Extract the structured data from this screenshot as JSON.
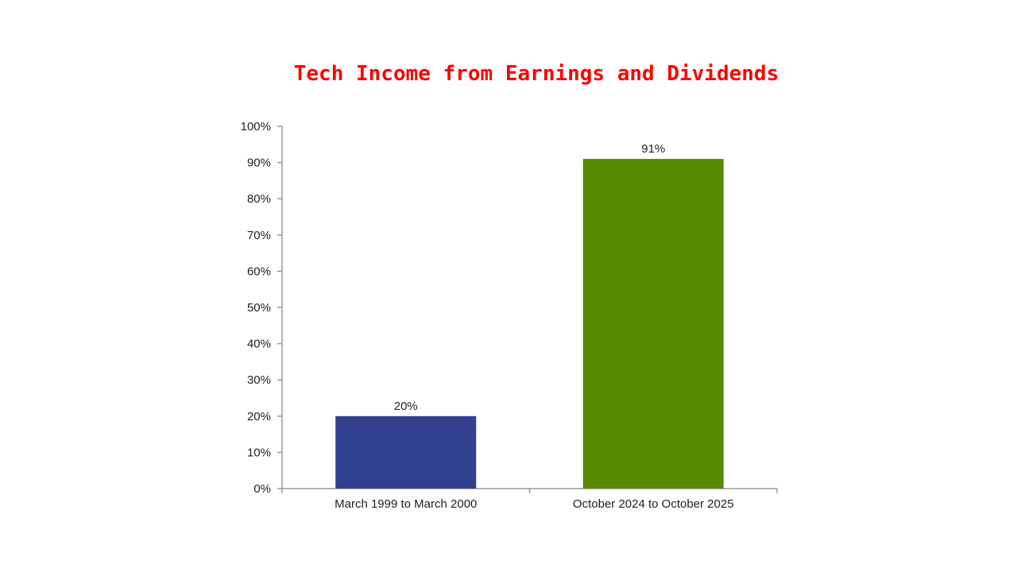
{
  "chart_data": {
    "type": "bar",
    "title": "Tech Income from Earnings and Dividends",
    "xlabel": "",
    "ylabel": "",
    "categories": [
      "March 1999 to March 2000",
      "October 2024 to October 2025"
    ],
    "values": [
      20,
      91
    ],
    "data_labels": [
      "20%",
      "91%"
    ],
    "ylim": [
      0,
      100
    ],
    "ytick_step": 10,
    "ytick_labels": [
      "0%",
      "10%",
      "20%",
      "30%",
      "40%",
      "50%",
      "60%",
      "70%",
      "80%",
      "90%",
      "100%"
    ],
    "bar_colors": [
      "#31408e",
      "#588a00"
    ],
    "grid": false,
    "legend": "none"
  },
  "colors": {
    "title": "#ff0000",
    "axis": "#9a9a9a",
    "text": "#222222"
  }
}
